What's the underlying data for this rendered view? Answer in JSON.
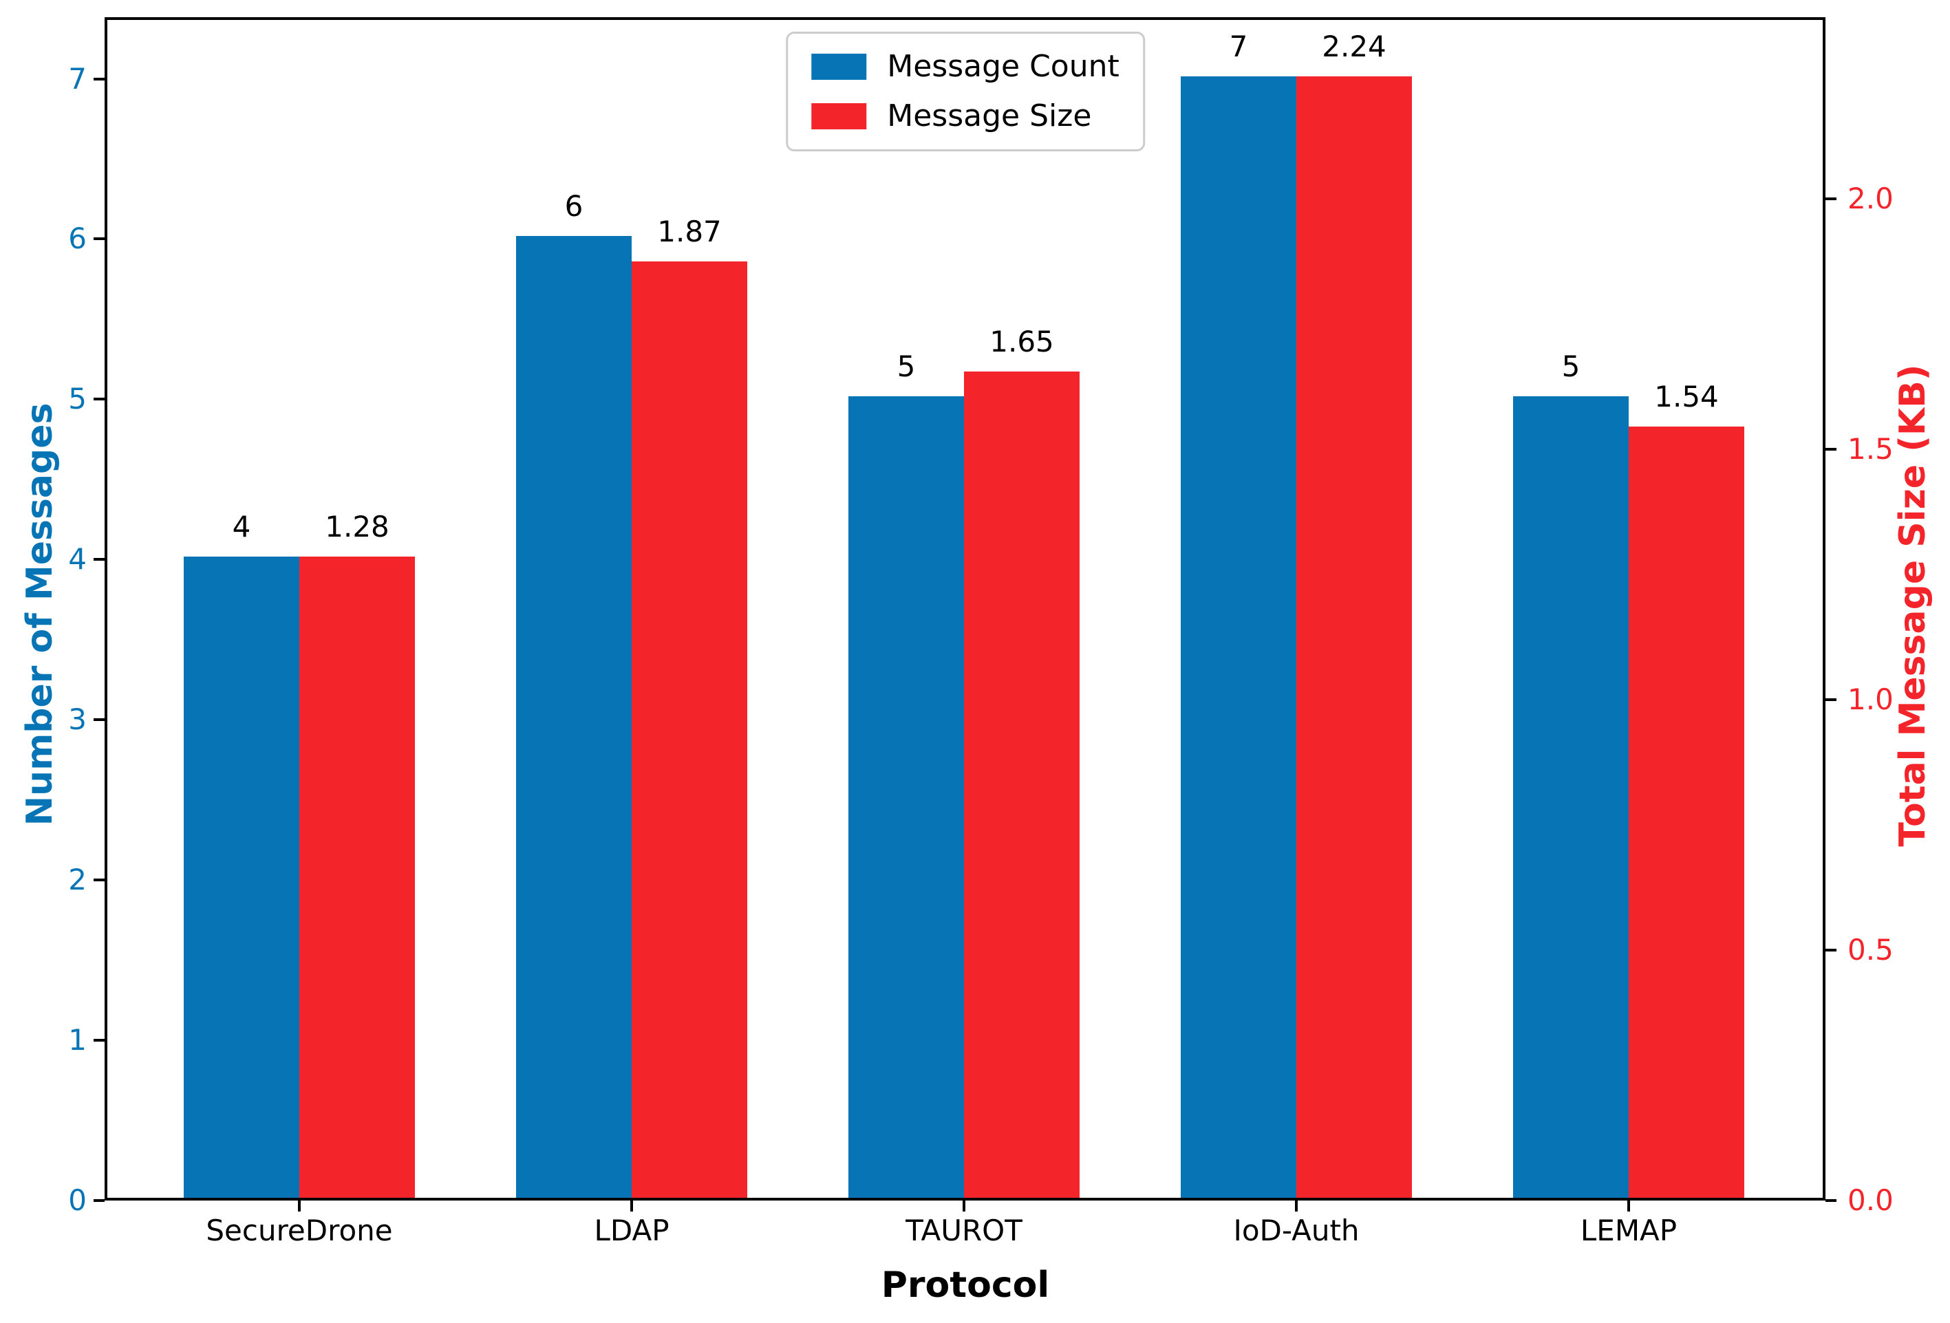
{
  "chart_data": {
    "type": "bar",
    "title": "",
    "xlabel": "Protocol",
    "categories": [
      "SecureDrone",
      "LDAP",
      "TAUROT",
      "IoD-Auth",
      "LEMAP"
    ],
    "series": [
      {
        "name": "Message Count",
        "axis": "left",
        "color": "#0774b5",
        "values": [
          4,
          6,
          5,
          7,
          5
        ],
        "labels": [
          "4",
          "6",
          "5",
          "7",
          "5"
        ]
      },
      {
        "name": "Message Size",
        "axis": "right",
        "color": "#f3252b",
        "values": [
          1.28,
          1.87,
          1.65,
          2.24,
          1.54
        ],
        "labels": [
          "1.28",
          "1.87",
          "1.65",
          "2.24",
          "1.54"
        ]
      }
    ],
    "left_axis": {
      "label": "Number of Messages",
      "color": "#0774b5",
      "ticks": [
        "0",
        "1",
        "2",
        "3",
        "4",
        "5",
        "6",
        "7"
      ],
      "tick_values": [
        0,
        1,
        2,
        3,
        4,
        5,
        6,
        7
      ],
      "range": [
        0,
        7.35
      ]
    },
    "right_axis": {
      "label": "Total Message Size (KB)",
      "color": "#f3252b",
      "ticks": [
        "0.0",
        "0.5",
        "1.0",
        "1.5",
        "2.0"
      ],
      "tick_values": [
        0,
        0.5,
        1.0,
        1.5,
        2.0
      ],
      "range": [
        0,
        2.352
      ]
    },
    "legend": {
      "position": "upper center",
      "entries": [
        "Message Count",
        "Message Size"
      ]
    },
    "grid": false,
    "tick_mark_color": "#000000",
    "spine_color": "#000000"
  }
}
